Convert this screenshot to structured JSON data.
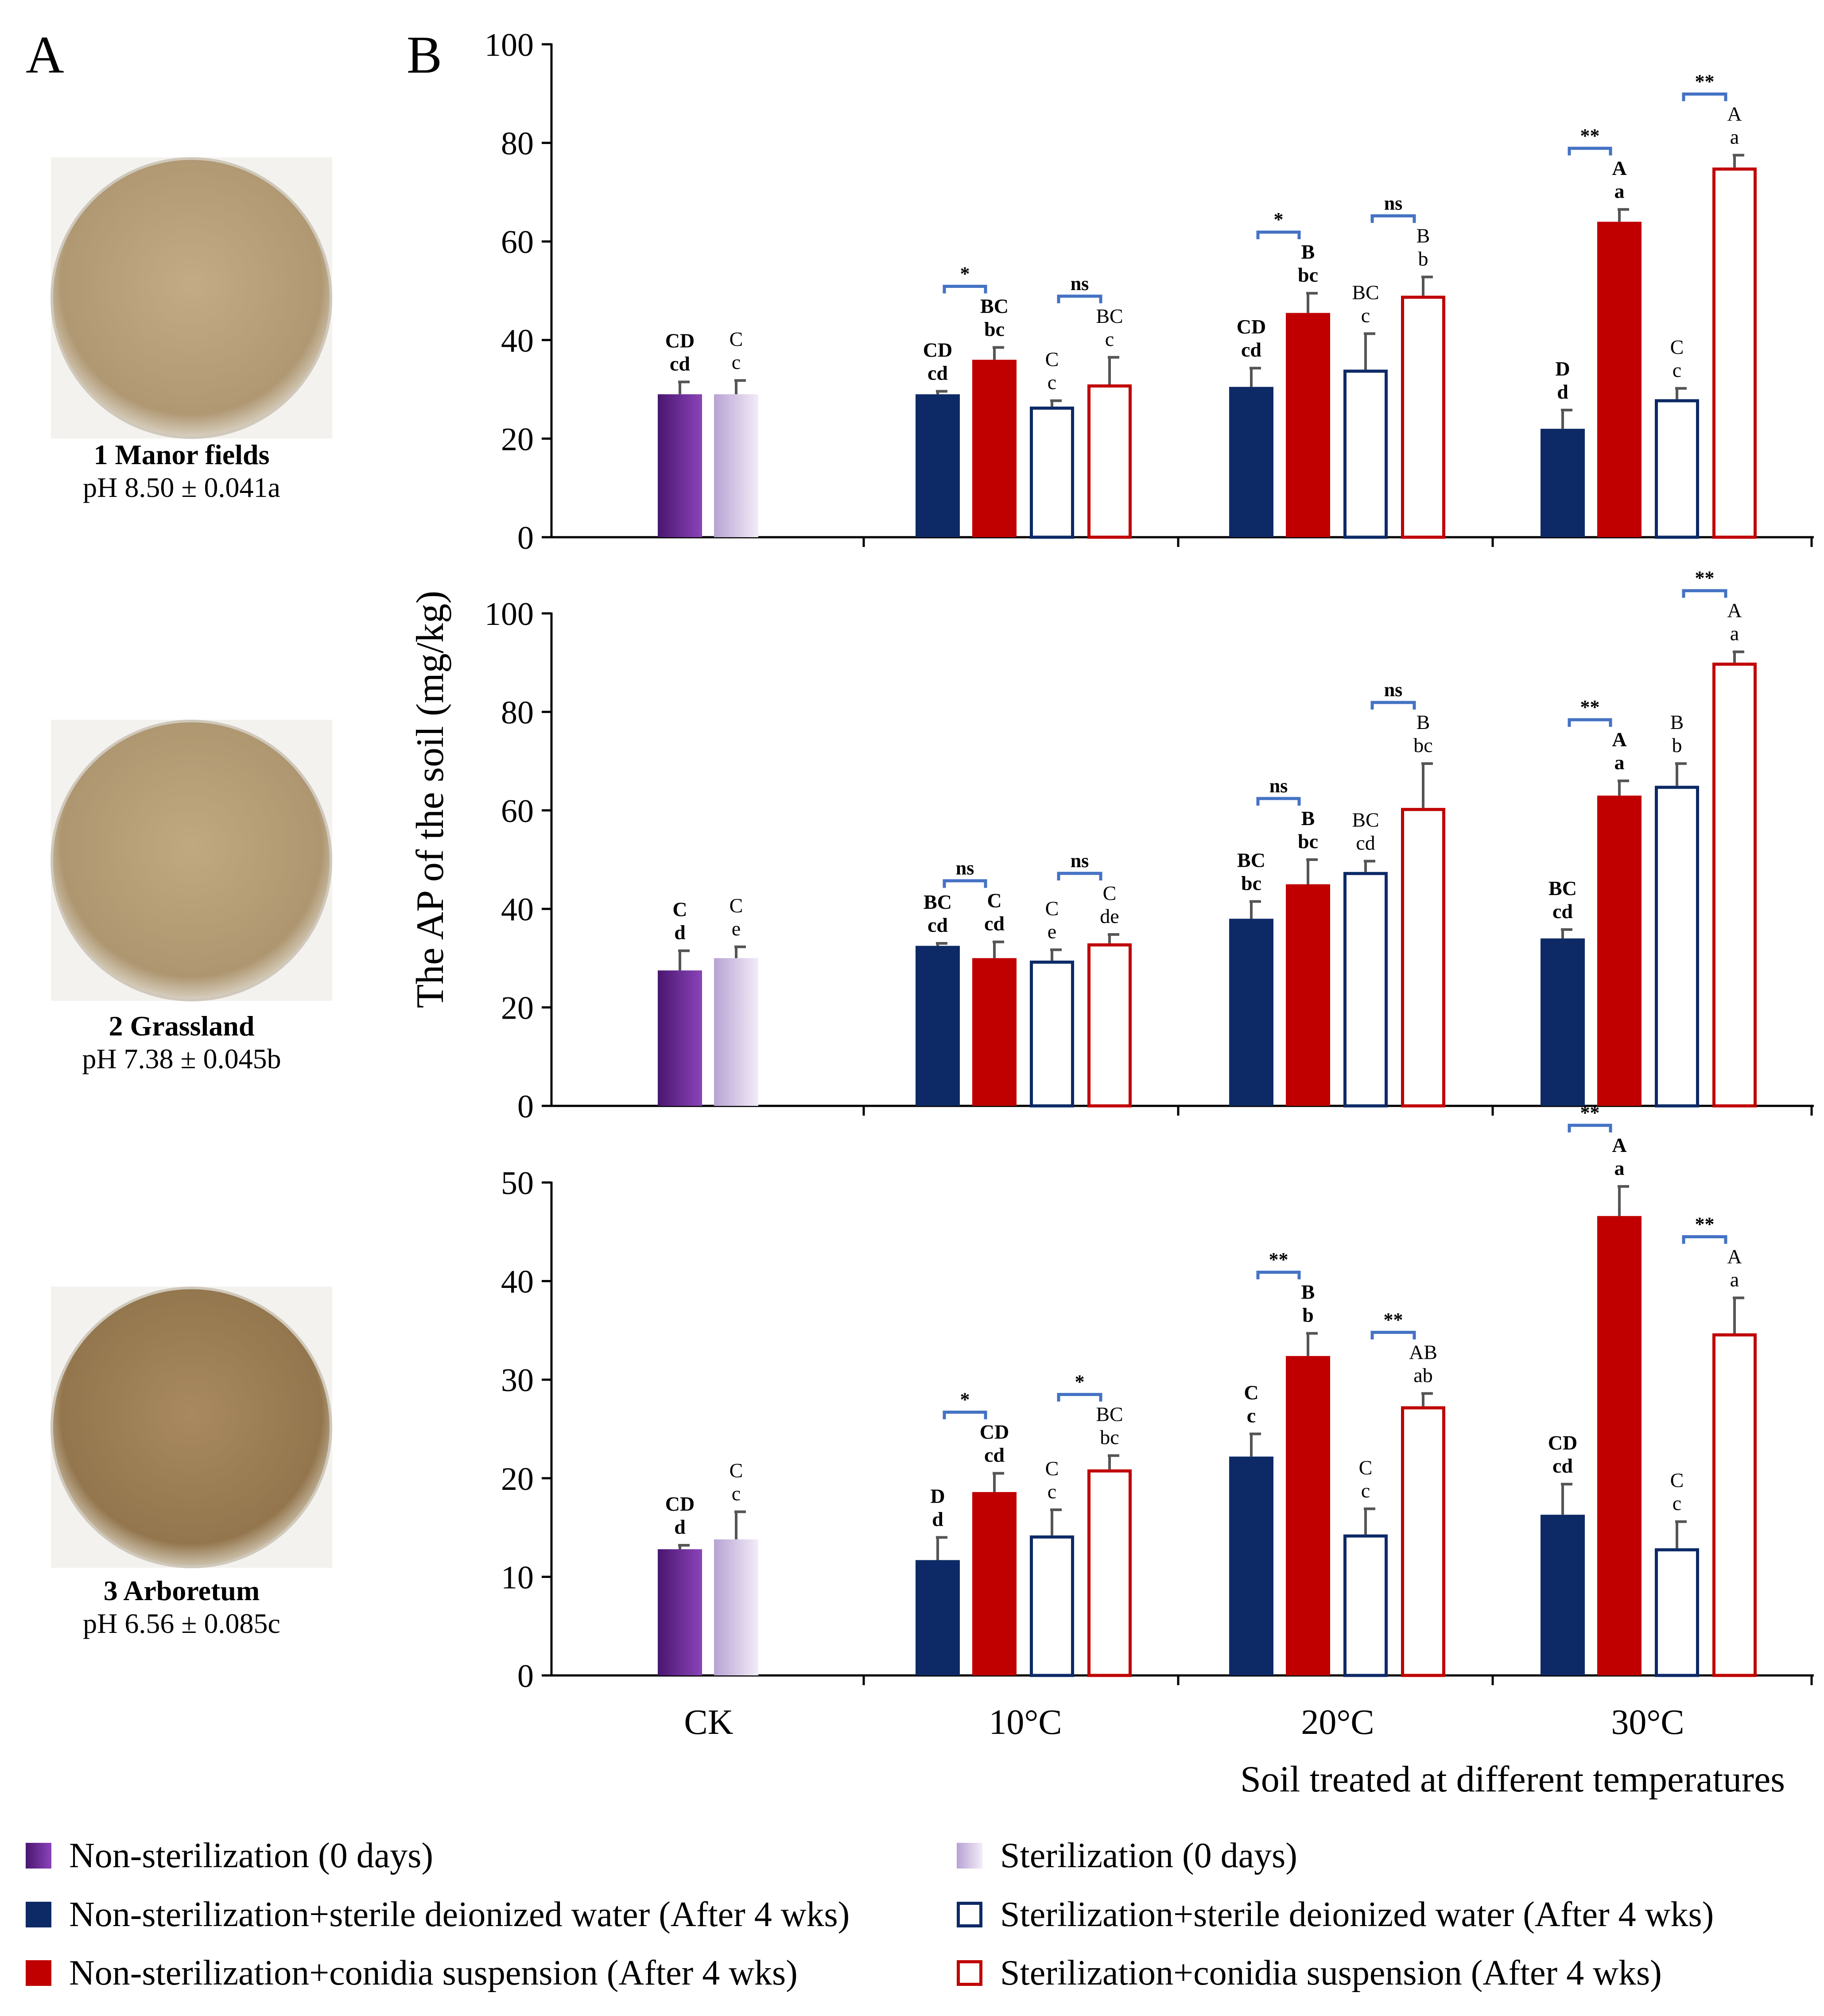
{
  "panel_labels": {
    "a": "A",
    "b": "B"
  },
  "soils": [
    {
      "name": "1 Manor fields",
      "ph": "pH 8.50 ± 0.041a",
      "color": "#b9a27d"
    },
    {
      "name": "2 Grassland",
      "ph": "pH 7.38 ± 0.045b",
      "color": "#b7a078"
    },
    {
      "name": "3 Arboretum",
      "ph": "pH 6.56 ± 0.085c",
      "color": "#a5855b"
    }
  ],
  "colors": {
    "ck_nonsterile": "#6a2690",
    "ck_sterile": "#ddd0ea",
    "navy": "#0d2a66",
    "red": "#c00000",
    "bracket": "#4472c4",
    "error": "#555555"
  },
  "legend": [
    {
      "label": "Non-sterilization (0 days)",
      "style": "ck_nonsterile"
    },
    {
      "label": "Sterilization (0 days)",
      "style": "ck_sterile"
    },
    {
      "label": "Non-sterilization+sterile deionized water (After 4 wks)",
      "style": "navy_fill"
    },
    {
      "label": "Sterilization+sterile deionized water (After 4 wks)",
      "style": "navy_open"
    },
    {
      "label": "Non-sterilization+conidia suspension (After 4 wks)",
      "style": "red_fill"
    },
    {
      "label": "Sterilization+conidia suspension (After 4 wks)",
      "style": "red_open"
    }
  ],
  "chart_data": {
    "type": "bar",
    "ylabel": "The AP of the soil (mg/kg)",
    "xlabel": "Soil treated at different temperatures",
    "categories": [
      "CK",
      "10°C",
      "20°C",
      "30°C"
    ],
    "panels": [
      {
        "soil": "1 Manor fields",
        "ylim": [
          0,
          100
        ],
        "yticks": [
          "0",
          "20",
          "40",
          "60",
          "80",
          "100"
        ],
        "groups": [
          {
            "category": "CK",
            "bars": [
              {
                "series": "ck_nonsterile",
                "value": 29,
                "err": 2.5,
                "letters": [
                  "CD",
                  "cd"
                ],
                "bold": true
              },
              {
                "series": "ck_sterile",
                "value": 29,
                "err": 2.8,
                "letters": [
                  "C",
                  "c"
                ],
                "bold": false
              }
            ],
            "brackets": []
          },
          {
            "category": "10°C",
            "bars": [
              {
                "series": "nonsterile_water",
                "value": 29,
                "err": 0.6,
                "letters": [
                  "CD",
                  "cd"
                ],
                "bold": true
              },
              {
                "series": "nonsterile_conidia",
                "value": 36,
                "err": 2.5,
                "letters": [
                  "BC",
                  "bc"
                ],
                "bold": true
              },
              {
                "series": "sterile_water",
                "value": 26.5,
                "err": 1.2,
                "letters": [
                  "C",
                  "c"
                ],
                "bold": false
              },
              {
                "series": "sterile_conidia",
                "value": 31,
                "err": 5.5,
                "letters": [
                  "BC",
                  "c"
                ],
                "bold": false
              }
            ],
            "brackets": [
              {
                "pair": [
                  0,
                  1
                ],
                "sig": "*"
              },
              {
                "pair": [
                  2,
                  3
                ],
                "sig": "ns"
              }
            ]
          },
          {
            "category": "20°C",
            "bars": [
              {
                "series": "nonsterile_water",
                "value": 30.5,
                "err": 3.8,
                "letters": [
                  "CD",
                  "cd"
                ],
                "bold": true
              },
              {
                "series": "nonsterile_conidia",
                "value": 45.5,
                "err": 4,
                "letters": [
                  "B",
                  "bc"
                ],
                "bold": true
              },
              {
                "series": "sterile_water",
                "value": 34,
                "err": 7.3,
                "letters": [
                  "BC",
                  "c"
                ],
                "bold": false
              },
              {
                "series": "sterile_conidia",
                "value": 49,
                "err": 3.8,
                "letters": [
                  "B",
                  "b"
                ],
                "bold": false
              }
            ],
            "brackets": [
              {
                "pair": [
                  0,
                  1
                ],
                "sig": "*"
              },
              {
                "pair": [
                  2,
                  3
                ],
                "sig": "ns"
              }
            ]
          },
          {
            "category": "30°C",
            "bars": [
              {
                "series": "nonsterile_water",
                "value": 22,
                "err": 3.8,
                "letters": [
                  "D",
                  "d"
                ],
                "bold": true
              },
              {
                "series": "nonsterile_conidia",
                "value": 64,
                "err": 2.5,
                "letters": [
                  "A",
                  "a"
                ],
                "bold": true
              },
              {
                "series": "sterile_water",
                "value": 28,
                "err": 2.2,
                "letters": [
                  "C",
                  "c"
                ],
                "bold": false
              },
              {
                "series": "sterile_conidia",
                "value": 75,
                "err": 2.5,
                "letters": [
                  "A",
                  "a"
                ],
                "bold": false
              }
            ],
            "brackets": [
              {
                "pair": [
                  0,
                  1
                ],
                "sig": "**"
              },
              {
                "pair": [
                  2,
                  3
                ],
                "sig": "**"
              }
            ]
          }
        ]
      },
      {
        "soil": "2 Grassland",
        "ylim": [
          0,
          100
        ],
        "yticks": [
          "0",
          "20",
          "40",
          "60",
          "80",
          "100"
        ],
        "groups": [
          {
            "category": "CK",
            "bars": [
              {
                "series": "ck_nonsterile",
                "value": 27.5,
                "err": 4,
                "letters": [
                  "C",
                  "d"
                ],
                "bold": true
              },
              {
                "series": "ck_sterile",
                "value": 30,
                "err": 2.3,
                "letters": [
                  "C",
                  "e"
                ],
                "bold": false
              }
            ],
            "brackets": []
          },
          {
            "category": "10°C",
            "bars": [
              {
                "series": "nonsterile_water",
                "value": 32.5,
                "err": 0.5,
                "letters": [
                  "BC",
                  "cd"
                ],
                "bold": true
              },
              {
                "series": "nonsterile_conidia",
                "value": 30,
                "err": 3.3,
                "letters": [
                  "C",
                  "cd"
                ],
                "bold": true
              },
              {
                "series": "sterile_water",
                "value": 29.5,
                "err": 2.2,
                "letters": [
                  "C",
                  "e"
                ],
                "bold": false
              },
              {
                "series": "sterile_conidia",
                "value": 33,
                "err": 1.8,
                "letters": [
                  "C",
                  "de"
                ],
                "bold": false
              }
            ],
            "brackets": [
              {
                "pair": [
                  0,
                  1
                ],
                "sig": "ns"
              },
              {
                "pair": [
                  2,
                  3
                ],
                "sig": "ns"
              }
            ]
          },
          {
            "category": "20°C",
            "bars": [
              {
                "series": "nonsterile_water",
                "value": 38,
                "err": 3.5,
                "letters": [
                  "BC",
                  "bc"
                ],
                "bold": true
              },
              {
                "series": "nonsterile_conidia",
                "value": 45,
                "err": 5,
                "letters": [
                  "B",
                  "bc"
                ],
                "bold": true
              },
              {
                "series": "sterile_water",
                "value": 47.5,
                "err": 2.2,
                "letters": [
                  "BC",
                  "cd"
                ],
                "bold": false
              },
              {
                "series": "sterile_conidia",
                "value": 60.5,
                "err": 9,
                "letters": [
                  "B",
                  "bc"
                ],
                "bold": false
              }
            ],
            "brackets": [
              {
                "pair": [
                  0,
                  1
                ],
                "sig": "ns"
              },
              {
                "pair": [
                  2,
                  3
                ],
                "sig": "ns"
              }
            ]
          },
          {
            "category": "30°C",
            "bars": [
              {
                "series": "nonsterile_water",
                "value": 34,
                "err": 1.8,
                "letters": [
                  "BC",
                  "cd"
                ],
                "bold": true
              },
              {
                "series": "nonsterile_conidia",
                "value": 63,
                "err": 3,
                "letters": [
                  "A",
                  "a"
                ],
                "bold": true
              },
              {
                "series": "sterile_water",
                "value": 65,
                "err": 4.5,
                "letters": [
                  "B",
                  "b"
                ],
                "bold": false
              },
              {
                "series": "sterile_conidia",
                "value": 90,
                "err": 2.2,
                "letters": [
                  "A",
                  "a"
                ],
                "bold": false
              }
            ],
            "brackets": [
              {
                "pair": [
                  0,
                  1
                ],
                "sig": "**"
              },
              {
                "pair": [
                  2,
                  3
                ],
                "sig": "**"
              }
            ]
          }
        ]
      },
      {
        "soil": "3 Arboretum",
        "ylim": [
          0,
          50
        ],
        "yticks": [
          "0",
          "10",
          "20",
          "30",
          "40",
          "50"
        ],
        "groups": [
          {
            "category": "CK",
            "bars": [
              {
                "series": "ck_nonsterile",
                "value": 12.8,
                "err": 0.4,
                "letters": [
                  "CD",
                  "d"
                ],
                "bold": true
              },
              {
                "series": "ck_sterile",
                "value": 13.8,
                "err": 2.8,
                "letters": [
                  "C",
                  "c"
                ],
                "bold": false
              }
            ],
            "brackets": []
          },
          {
            "category": "10°C",
            "bars": [
              {
                "series": "nonsterile_water",
                "value": 11.7,
                "err": 2.3,
                "letters": [
                  "D",
                  "d"
                ],
                "bold": true
              },
              {
                "series": "nonsterile_conidia",
                "value": 18.6,
                "err": 1.9,
                "letters": [
                  "CD",
                  "cd"
                ],
                "bold": true
              },
              {
                "series": "sterile_water",
                "value": 14.2,
                "err": 2.6,
                "letters": [
                  "C",
                  "c"
                ],
                "bold": false
              },
              {
                "series": "sterile_conidia",
                "value": 20.9,
                "err": 1.4,
                "letters": [
                  "BC",
                  "bc"
                ],
                "bold": false
              }
            ],
            "brackets": [
              {
                "pair": [
                  0,
                  1
                ],
                "sig": "*"
              },
              {
                "pair": [
                  2,
                  3
                ],
                "sig": "*"
              }
            ]
          },
          {
            "category": "20°C",
            "bars": [
              {
                "series": "nonsterile_water",
                "value": 22.2,
                "err": 2.3,
                "letters": [
                  "C",
                  "c"
                ],
                "bold": true
              },
              {
                "series": "nonsterile_conidia",
                "value": 32.4,
                "err": 2.3,
                "letters": [
                  "B",
                  "b"
                ],
                "bold": true
              },
              {
                "series": "sterile_water",
                "value": 14.3,
                "err": 2.6,
                "letters": [
                  "C",
                  "c"
                ],
                "bold": false
              },
              {
                "series": "sterile_conidia",
                "value": 27.3,
                "err": 1.3,
                "letters": [
                  "AB",
                  "ab"
                ],
                "bold": false
              }
            ],
            "brackets": [
              {
                "pair": [
                  0,
                  1
                ],
                "sig": "**"
              },
              {
                "pair": [
                  2,
                  3
                ],
                "sig": "**"
              }
            ]
          },
          {
            "category": "30°C",
            "bars": [
              {
                "series": "nonsterile_water",
                "value": 16.3,
                "err": 3.1,
                "letters": [
                  "CD",
                  "cd"
                ],
                "bold": true
              },
              {
                "series": "nonsterile_conidia",
                "value": 46.6,
                "err": 3,
                "letters": [
                  "A",
                  "a"
                ],
                "bold": true
              },
              {
                "series": "sterile_water",
                "value": 12.9,
                "err": 2.7,
                "letters": [
                  "C",
                  "c"
                ],
                "bold": false
              },
              {
                "series": "sterile_conidia",
                "value": 34.7,
                "err": 3.6,
                "letters": [
                  "A",
                  "a"
                ],
                "bold": false
              }
            ],
            "brackets": [
              {
                "pair": [
                  0,
                  1
                ],
                "sig": "**"
              },
              {
                "pair": [
                  2,
                  3
                ],
                "sig": "**"
              }
            ]
          }
        ]
      }
    ]
  }
}
